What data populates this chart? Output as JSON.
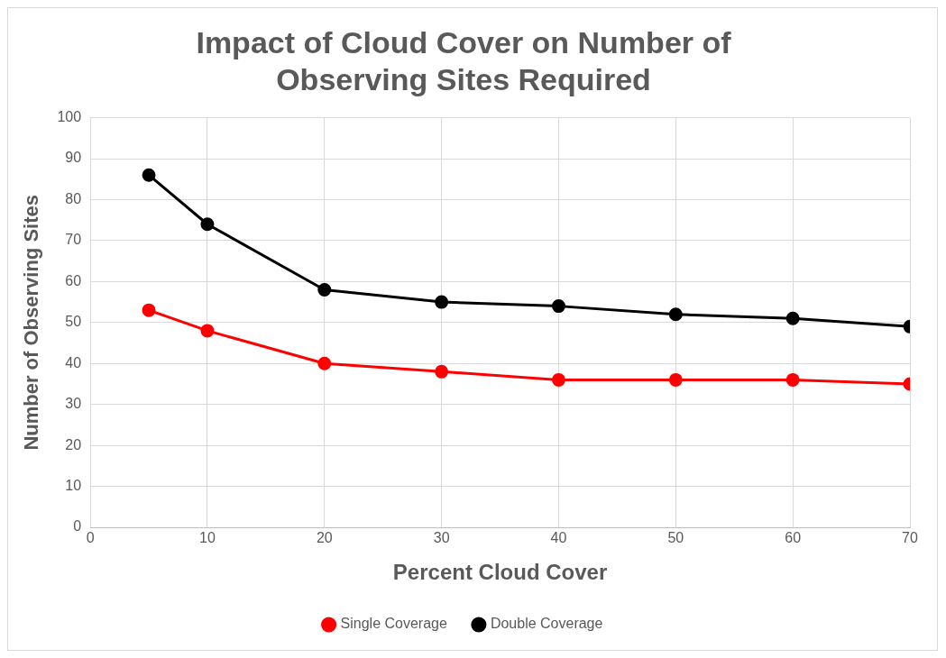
{
  "chart_data": {
    "type": "line",
    "title": "Impact of Cloud Cover on Number of Observing Sites Required",
    "xlabel": "Percent Cloud Cover",
    "ylabel": "Number of Observing Sites",
    "x": [
      5,
      10,
      20,
      30,
      40,
      50,
      60,
      70
    ],
    "series": [
      {
        "name": "Single Coverage",
        "color": "#ff0000",
        "values": [
          53,
          48,
          40,
          38,
          36,
          36,
          36,
          35
        ]
      },
      {
        "name": "Double Coverage",
        "color": "#000000",
        "values": [
          86,
          74,
          58,
          55,
          54,
          52,
          51,
          49
        ]
      }
    ],
    "xlim": [
      0,
      70
    ],
    "xticks": [
      0,
      10,
      20,
      30,
      40,
      50,
      60,
      70
    ],
    "ylim": [
      0,
      100
    ],
    "yticks": [
      0,
      10,
      20,
      30,
      40,
      50,
      60,
      70,
      80,
      90,
      100
    ],
    "grid": true,
    "legend": "bottom",
    "marker": "circle",
    "line_style": "solid"
  }
}
